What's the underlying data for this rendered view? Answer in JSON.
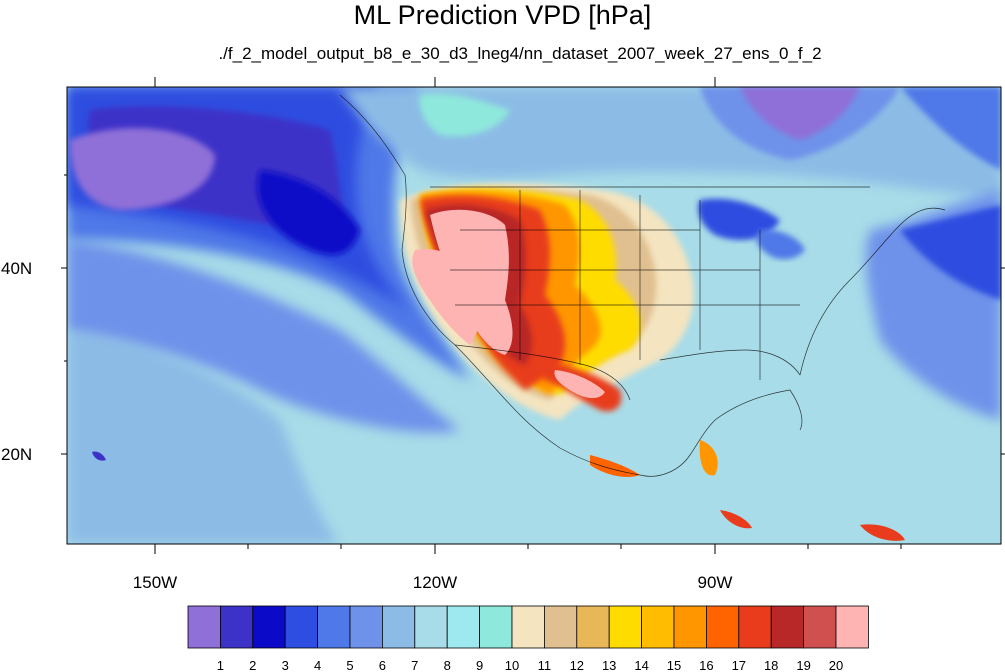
{
  "title": "ML Prediction VPD [hPa]",
  "subtitle": "./f_2_model_output_b8_e_30_d3_lneg4/nn_dataset_2007_week_27_ens_0_f_2",
  "axes": {
    "lat_labels": [
      "40N",
      "20N"
    ],
    "lon_labels": [
      "150W",
      "120W",
      "90W"
    ]
  },
  "colorbar": {
    "labels": [
      "1",
      "2",
      "3",
      "4",
      "5",
      "6",
      "7",
      "8",
      "9",
      "10",
      "11",
      "12",
      "13",
      "14",
      "15",
      "16",
      "17",
      "18",
      "19",
      "20"
    ],
    "colors": [
      "#8f6fd8",
      "#3c32c8",
      "#0a0ac8",
      "#2d4ee0",
      "#4f78e8",
      "#6e92ea",
      "#8cbce6",
      "#a8dce8",
      "#9ee8f0",
      "#8ee8dc",
      "#f4e4c0",
      "#e0c090",
      "#e8b858",
      "#ffdc00",
      "#ffbc00",
      "#ff9600",
      "#ff6400",
      "#e83c1c",
      "#b82828",
      "#d05050",
      "#ffb4b4"
    ]
  },
  "map": {
    "ocean_color": "#a8dce8",
    "land_color": "#a8dce8"
  }
}
